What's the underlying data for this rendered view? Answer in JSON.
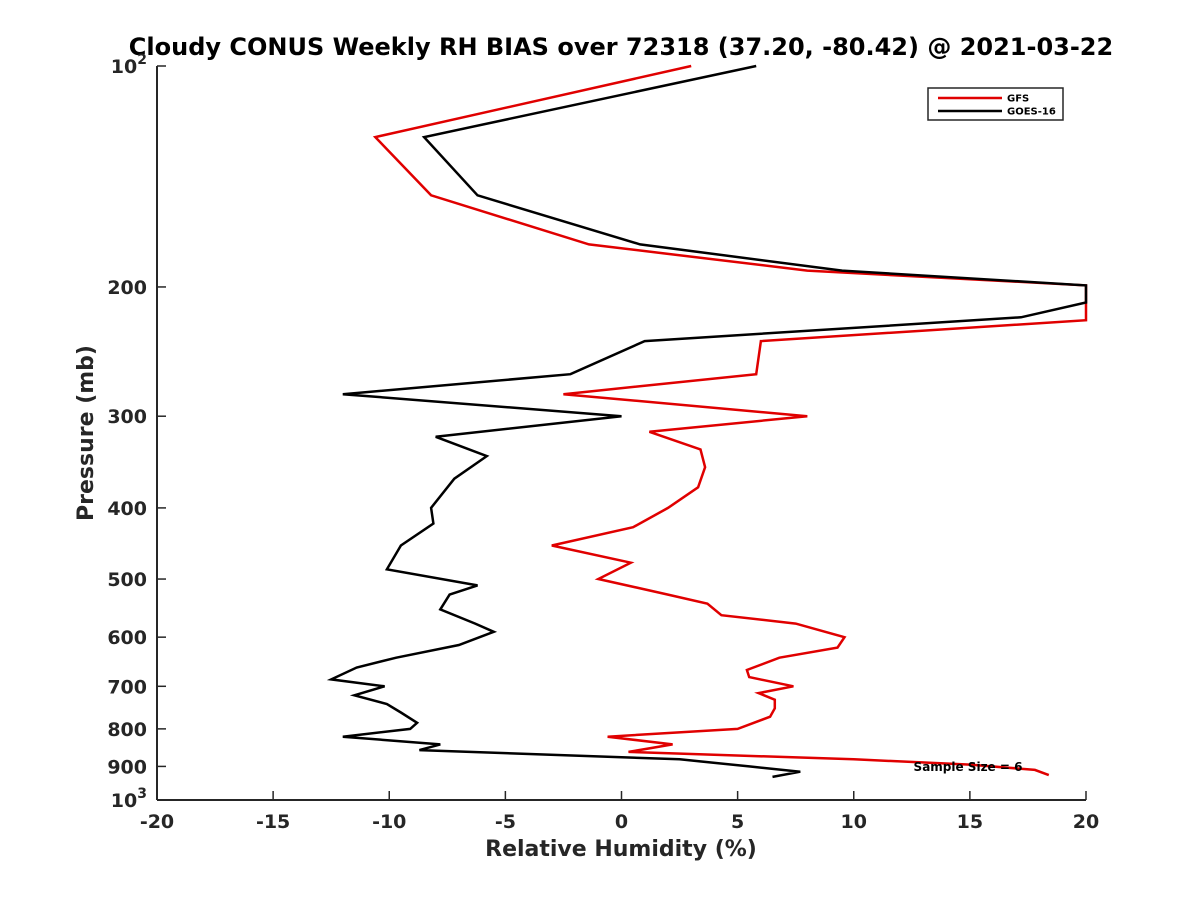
{
  "chart_data": {
    "type": "line",
    "title": "Cloudy CONUS Weekly RH BIAS over 72318 (37.20, -80.42) @ 2021-03-22",
    "xlabel": "Relative Humidity (%)",
    "ylabel": "Pressure (mb)",
    "xlim": [
      -20,
      20
    ],
    "ylim": [
      100,
      1000
    ],
    "y_scale": "log",
    "y_reversed": true,
    "x_ticks": [
      "-20",
      "-15",
      "-10",
      "-5",
      "0",
      "5",
      "10",
      "15",
      "20"
    ],
    "y_ticks": [
      {
        "value": 100,
        "base": "10",
        "exp": "2"
      },
      {
        "value": 200,
        "label": "200"
      },
      {
        "value": 300,
        "label": "300"
      },
      {
        "value": 400,
        "label": "400"
      },
      {
        "value": 500,
        "label": "500"
      },
      {
        "value": 600,
        "label": "600"
      },
      {
        "value": 700,
        "label": "700"
      },
      {
        "value": 800,
        "label": "800"
      },
      {
        "value": 900,
        "label": "900"
      },
      {
        "value": 1000,
        "base": "10",
        "exp": "3"
      }
    ],
    "grid": false,
    "legend_position": "top-right",
    "annotation": "Sample Size = 6",
    "series": [
      {
        "name": "GFS",
        "color": "#e00000",
        "points": [
          [
            3.0,
            100
          ],
          [
            -10.6,
            125
          ],
          [
            -8.2,
            150
          ],
          [
            -1.4,
            175
          ],
          [
            8.0,
            190
          ],
          [
            20.0,
            199
          ],
          [
            20.0,
            222
          ],
          [
            6.0,
            237
          ],
          [
            5.8,
            263
          ],
          [
            -2.5,
            280
          ],
          [
            8.0,
            300
          ],
          [
            1.2,
            315
          ],
          [
            3.4,
            333
          ],
          [
            3.6,
            352
          ],
          [
            3.3,
            375
          ],
          [
            2.0,
            400
          ],
          [
            0.5,
            425
          ],
          [
            -3.0,
            450
          ],
          [
            0.4,
            475
          ],
          [
            -1.0,
            500
          ],
          [
            2.0,
            525
          ],
          [
            3.7,
            540
          ],
          [
            4.3,
            560
          ],
          [
            7.5,
            575
          ],
          [
            9.6,
            600
          ],
          [
            9.3,
            620
          ],
          [
            6.8,
            640
          ],
          [
            5.4,
            665
          ],
          [
            5.5,
            680
          ],
          [
            7.4,
            700
          ],
          [
            5.9,
            715
          ],
          [
            6.6,
            730
          ],
          [
            6.6,
            750
          ],
          [
            6.4,
            770
          ],
          [
            5.0,
            800
          ],
          [
            -0.6,
            820
          ],
          [
            2.2,
            840
          ],
          [
            0.3,
            860
          ],
          [
            10.0,
            880
          ],
          [
            15.0,
            895
          ],
          [
            17.8,
            910
          ],
          [
            18.4,
            925
          ]
        ]
      },
      {
        "name": "GOES-16",
        "color": "#000000",
        "points": [
          [
            5.8,
            100
          ],
          [
            -8.5,
            125
          ],
          [
            -6.2,
            150
          ],
          [
            0.8,
            175
          ],
          [
            9.5,
            190
          ],
          [
            20.0,
            199
          ],
          [
            20.0,
            210
          ],
          [
            17.2,
            220
          ],
          [
            1.0,
            237
          ],
          [
            -2.2,
            263
          ],
          [
            -12.0,
            280
          ],
          [
            0.0,
            300
          ],
          [
            -8.0,
            320
          ],
          [
            -5.8,
            340
          ],
          [
            -7.2,
            365
          ],
          [
            -8.2,
            400
          ],
          [
            -8.1,
            420
          ],
          [
            -9.5,
            450
          ],
          [
            -10.1,
            485
          ],
          [
            -6.2,
            510
          ],
          [
            -7.4,
            525
          ],
          [
            -7.8,
            550
          ],
          [
            -6.3,
            575
          ],
          [
            -5.5,
            590
          ],
          [
            -7.0,
            615
          ],
          [
            -9.7,
            640
          ],
          [
            -11.4,
            660
          ],
          [
            -12.5,
            685
          ],
          [
            -10.2,
            700
          ],
          [
            -11.5,
            720
          ],
          [
            -10.1,
            740
          ],
          [
            -9.5,
            760
          ],
          [
            -8.8,
            785
          ],
          [
            -9.1,
            800
          ],
          [
            -12.0,
            820
          ],
          [
            -7.8,
            840
          ],
          [
            -8.7,
            855
          ],
          [
            2.5,
            880
          ],
          [
            5.5,
            900
          ],
          [
            7.7,
            915
          ],
          [
            6.5,
            930
          ]
        ]
      }
    ]
  }
}
